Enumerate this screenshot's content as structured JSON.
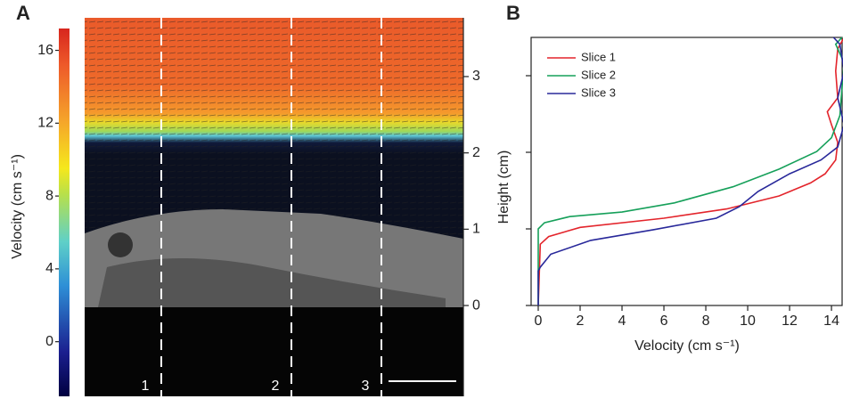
{
  "chart_data": [
    {
      "type": "heatmap",
      "panel_label": "A",
      "colorbar": {
        "label": "Velocity (cm s⁻¹)",
        "lim": [
          -3,
          17.2
        ],
        "ticks": [
          0,
          4,
          8,
          12,
          16
        ]
      },
      "y2label": "Height (cm)",
      "y2lim": [
        -1.19,
        3.77
      ],
      "y2ticks": [
        0,
        1,
        2,
        3
      ],
      "slices": [
        "1",
        "2",
        "3"
      ]
    },
    {
      "type": "line",
      "panel_label": "B",
      "xlabel": "Velocity (cm s⁻¹)",
      "xlim": [
        -0.34,
        14.55
      ],
      "xticks": [
        0,
        2,
        4,
        6,
        8,
        10,
        12,
        14
      ],
      "ylim": [
        0,
        3.5
      ],
      "yticks": [
        0,
        1,
        2,
        3
      ],
      "legend": "upper left",
      "series": [
        {
          "name": "Slice 1",
          "color": "#e3242b",
          "x": [
            0,
            0.1,
            0.5,
            2,
            6,
            9,
            11.5,
            13,
            13.7,
            14.2,
            14.3,
            14.0,
            13.8,
            14.3,
            14.2,
            14.3,
            14.6
          ],
          "values": [
            0,
            0.8,
            0.9,
            1.02,
            1.14,
            1.26,
            1.43,
            1.6,
            1.72,
            1.9,
            2.13,
            2.36,
            2.53,
            2.71,
            3.06,
            3.35,
            3.5
          ]
        },
        {
          "name": "Slice 2",
          "color": "#16a05a",
          "x": [
            0,
            0,
            0.3,
            1.5,
            4,
            6.5,
            9.3,
            11.5,
            13.3,
            14,
            14.4,
            14.5,
            14.6,
            14.2,
            14.5
          ],
          "values": [
            0,
            1.0,
            1.08,
            1.16,
            1.22,
            1.34,
            1.55,
            1.78,
            2.01,
            2.19,
            2.48,
            2.83,
            3.17,
            3.41,
            3.5
          ]
        },
        {
          "name": "Slice 3",
          "color": "#28289a",
          "x": [
            0,
            0,
            0.1,
            0.6,
            2.5,
            5.5,
            8.5,
            9.6,
            10.5,
            12,
            13.5,
            14.3,
            14.6,
            14.3,
            14.6,
            14.4,
            14.1
          ],
          "values": [
            0,
            0.45,
            0.5,
            0.67,
            0.85,
            0.99,
            1.14,
            1.29,
            1.49,
            1.72,
            1.9,
            2.07,
            2.36,
            2.71,
            3.06,
            3.41,
            3.5
          ]
        }
      ]
    }
  ]
}
